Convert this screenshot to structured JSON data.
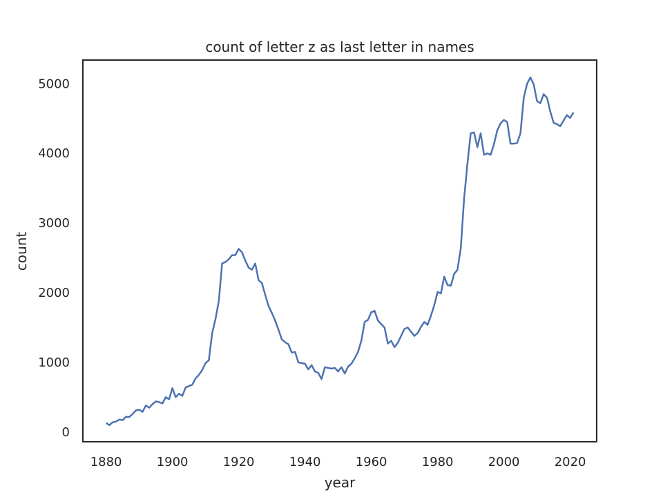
{
  "chart_data": {
    "type": "line",
    "title": "count of letter z as last letter in names",
    "xlabel": "year",
    "ylabel": "count",
    "xlim": [
      1873,
      2028
    ],
    "ylim": [
      -140,
      5340
    ],
    "xticks": [
      1880,
      1900,
      1920,
      1940,
      1960,
      1980,
      2000,
      2020
    ],
    "yticks": [
      0,
      1000,
      2000,
      3000,
      4000,
      5000
    ],
    "grid": false,
    "legend": "none",
    "line_color": "#4c72b0",
    "series": [
      {
        "x": [
          1880,
          1881,
          1882,
          1883,
          1884,
          1885,
          1886,
          1887,
          1888,
          1889,
          1890,
          1891,
          1892,
          1893,
          1894,
          1895,
          1896,
          1897,
          1898,
          1899,
          1900,
          1901,
          1902,
          1903,
          1904,
          1905,
          1906,
          1907,
          1908,
          1909,
          1910,
          1911,
          1912,
          1913,
          1914,
          1915,
          1916,
          1917,
          1918,
          1919,
          1920,
          1921,
          1922,
          1923,
          1924,
          1925,
          1926,
          1927,
          1928,
          1929,
          1930,
          1931,
          1932,
          1933,
          1934,
          1935,
          1936,
          1937,
          1938,
          1939,
          1940,
          1941,
          1942,
          1943,
          1944,
          1945,
          1946,
          1947,
          1948,
          1949,
          1950,
          1951,
          1952,
          1953,
          1954,
          1955,
          1956,
          1957,
          1958,
          1959,
          1960,
          1961,
          1962,
          1963,
          1964,
          1965,
          1966,
          1967,
          1968,
          1969,
          1970,
          1971,
          1972,
          1973,
          1974,
          1975,
          1976,
          1977,
          1978,
          1979,
          1980,
          1981,
          1982,
          1983,
          1984,
          1985,
          1986,
          1987,
          1988,
          1989,
          1990,
          1991,
          1992,
          1993,
          1994,
          1995,
          1996,
          1997,
          1998,
          1999,
          2000,
          2001,
          2002,
          2003,
          2004,
          2005,
          2006,
          2007,
          2008,
          2009,
          2010,
          2011,
          2012,
          2013,
          2014,
          2015,
          2016,
          2017,
          2018,
          2019,
          2020,
          2021
        ],
        "values": [
          130,
          100,
          140,
          150,
          180,
          170,
          220,
          215,
          260,
          310,
          320,
          290,
          380,
          350,
          400,
          440,
          430,
          410,
          500,
          470,
          630,
          500,
          550,
          520,
          640,
          660,
          680,
          770,
          820,
          890,
          990,
          1030,
          1420,
          1620,
          1880,
          2420,
          2440,
          2480,
          2540,
          2540,
          2630,
          2580,
          2460,
          2360,
          2330,
          2420,
          2180,
          2140,
          1970,
          1810,
          1710,
          1600,
          1470,
          1330,
          1290,
          1260,
          1140,
          1150,
          1000,
          990,
          980,
          900,
          960,
          870,
          850,
          760,
          930,
          920,
          910,
          920,
          870,
          930,
          840,
          940,
          980,
          1060,
          1150,
          1310,
          1580,
          1610,
          1720,
          1740,
          1600,
          1550,
          1500,
          1270,
          1310,
          1220,
          1280,
          1380,
          1480,
          1500,
          1440,
          1380,
          1420,
          1510,
          1580,
          1540,
          1670,
          1820,
          2010,
          1990,
          2230,
          2110,
          2100,
          2270,
          2330,
          2640,
          3350,
          3850,
          4290,
          4300,
          4090,
          4290,
          3980,
          4000,
          3980,
          4130,
          4330,
          4430,
          4480,
          4450,
          4140,
          4140,
          4150,
          4290,
          4800,
          5000,
          5090,
          4990,
          4750,
          4720,
          4850,
          4800,
          4600,
          4440,
          4420,
          4390,
          4470,
          4550,
          4510,
          4590
        ]
      }
    ]
  }
}
